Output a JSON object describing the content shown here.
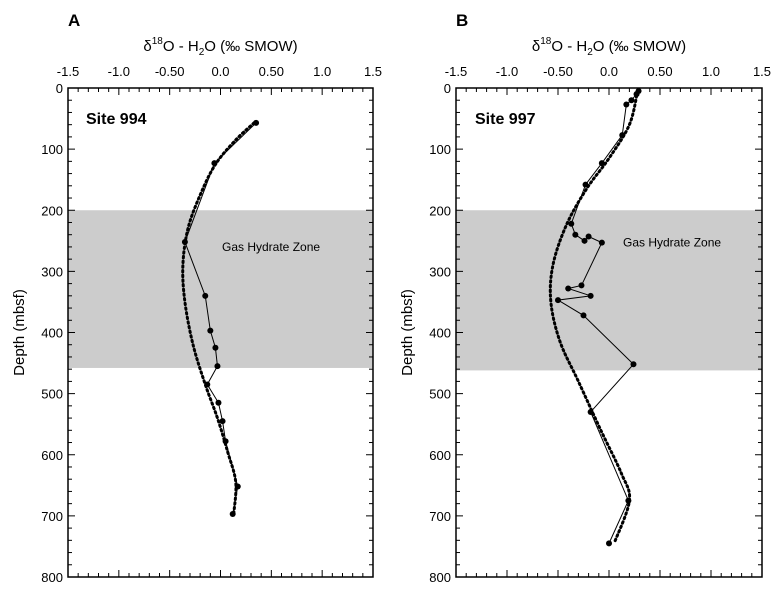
{
  "chart_data": [
    {
      "type": "line",
      "panel_letter": "A",
      "site_label": "Site 994",
      "xlabel_parts": {
        "pre": "δ",
        "sup1": "18",
        "mid": "O - H",
        "sub": "2",
        "post": "O (‰ SMOW)"
      },
      "ylabel": "Depth (mbsf)",
      "xlim": [
        -1.5,
        1.5
      ],
      "ylim": [
        0,
        800
      ],
      "y_inverted": true,
      "x_ticks": [
        -1.5,
        -1.0,
        -0.5,
        0,
        0.5,
        1.0,
        1.5
      ],
      "x_tick_labels": [
        "-1.5",
        "-1.0",
        "-0.50",
        "0.0",
        "0.50",
        "1.0",
        "1.5"
      ],
      "y_ticks": [
        0,
        100,
        200,
        300,
        400,
        500,
        600,
        700,
        800
      ],
      "y_tick_labels": [
        "0",
        "100",
        "200",
        "300",
        "400",
        "500",
        "600",
        "700",
        "800"
      ],
      "shaded_zone": {
        "label": "Gas Hydrate Zone",
        "depth_range": [
          200,
          458
        ]
      },
      "series": [
        {
          "style": "solid-with-markers",
          "points": [
            {
              "x": 0.35,
              "y": 57
            },
            {
              "x": -0.06,
              "y": 123
            },
            {
              "x": -0.35,
              "y": 252
            },
            {
              "x": -0.15,
              "y": 340
            },
            {
              "x": -0.1,
              "y": 397
            },
            {
              "x": -0.05,
              "y": 425
            },
            {
              "x": -0.03,
              "y": 455
            },
            {
              "x": -0.13,
              "y": 485
            },
            {
              "x": -0.02,
              "y": 515
            },
            {
              "x": 0.02,
              "y": 545
            },
            {
              "x": 0.05,
              "y": 578
            },
            {
              "x": 0.17,
              "y": 652
            },
            {
              "x": 0.12,
              "y": 697
            }
          ]
        },
        {
          "style": "dotted-fit",
          "points": [
            {
              "x": 0.33,
              "y": 57
            },
            {
              "x": 0.15,
              "y": 85
            },
            {
              "x": -0.05,
              "y": 125
            },
            {
              "x": -0.2,
              "y": 175
            },
            {
              "x": -0.32,
              "y": 230
            },
            {
              "x": -0.37,
              "y": 290
            },
            {
              "x": -0.35,
              "y": 350
            },
            {
              "x": -0.27,
              "y": 420
            },
            {
              "x": -0.15,
              "y": 485
            },
            {
              "x": -0.03,
              "y": 540
            },
            {
              "x": 0.07,
              "y": 595
            },
            {
              "x": 0.15,
              "y": 645
            },
            {
              "x": 0.13,
              "y": 697
            }
          ]
        }
      ]
    },
    {
      "type": "line",
      "panel_letter": "B",
      "site_label": "Site 997",
      "xlabel_parts": {
        "pre": "δ",
        "sup1": "18",
        "mid": "O - H",
        "sub": "2",
        "post": "O (‰ SMOW)"
      },
      "ylabel": "Depth (mbsf)",
      "xlim": [
        -1.5,
        1.5
      ],
      "ylim": [
        0,
        800
      ],
      "y_inverted": true,
      "x_ticks": [
        -1.5,
        -1.0,
        -0.5,
        0,
        0.5,
        1.0,
        1.5
      ],
      "x_tick_labels": [
        "-1.5",
        "-1.0",
        "-0.50",
        "0.0",
        "0.50",
        "1.0",
        "1.5"
      ],
      "y_ticks": [
        0,
        100,
        200,
        300,
        400,
        500,
        600,
        700,
        800
      ],
      "y_tick_labels": [
        "0",
        "100",
        "200",
        "300",
        "400",
        "500",
        "600",
        "700",
        "800"
      ],
      "shaded_zone": {
        "label": "Gas Hydrate Zone",
        "depth_range": [
          200,
          462
        ]
      },
      "series": [
        {
          "style": "solid-with-markers",
          "points": [
            {
              "x": 0.29,
              "y": 5
            },
            {
              "x": 0.27,
              "y": 10
            },
            {
              "x": 0.22,
              "y": 20
            },
            {
              "x": 0.17,
              "y": 27
            },
            {
              "x": 0.13,
              "y": 77
            },
            {
              "x": -0.07,
              "y": 123
            },
            {
              "x": -0.23,
              "y": 158
            },
            {
              "x": -0.37,
              "y": 222
            },
            {
              "x": -0.33,
              "y": 240
            },
            {
              "x": -0.24,
              "y": 250
            },
            {
              "x": -0.2,
              "y": 243
            },
            {
              "x": -0.07,
              "y": 253
            },
            {
              "x": -0.27,
              "y": 323
            },
            {
              "x": -0.4,
              "y": 328
            },
            {
              "x": -0.18,
              "y": 340
            },
            {
              "x": -0.5,
              "y": 347
            },
            {
              "x": -0.25,
              "y": 372
            },
            {
              "x": 0.24,
              "y": 452
            },
            {
              "x": -0.18,
              "y": 530
            },
            {
              "x": 0.19,
              "y": 675
            },
            {
              "x": 0.0,
              "y": 745
            }
          ]
        },
        {
          "style": "dotted-fit",
          "points": [
            {
              "x": 0.28,
              "y": 5
            },
            {
              "x": 0.2,
              "y": 60
            },
            {
              "x": 0.0,
              "y": 115
            },
            {
              "x": -0.22,
              "y": 165
            },
            {
              "x": -0.42,
              "y": 225
            },
            {
              "x": -0.55,
              "y": 290
            },
            {
              "x": -0.57,
              "y": 350
            },
            {
              "x": -0.48,
              "y": 415
            },
            {
              "x": -0.3,
              "y": 480
            },
            {
              "x": -0.08,
              "y": 560
            },
            {
              "x": 0.12,
              "y": 630
            },
            {
              "x": 0.2,
              "y": 675
            },
            {
              "x": 0.05,
              "y": 745
            }
          ]
        }
      ]
    }
  ]
}
